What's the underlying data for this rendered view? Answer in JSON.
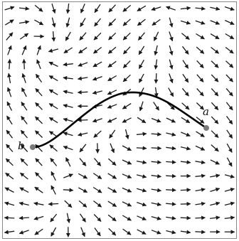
{
  "figure": {
    "points": [
      {
        "id": "a",
        "label": "a"
      },
      {
        "id": "b",
        "label": "b"
      }
    ],
    "colors": {
      "arrow": "#1a1a1a",
      "curve": "#000000",
      "frame": "#888888",
      "endpoint": "#7a7a7a"
    }
  }
}
